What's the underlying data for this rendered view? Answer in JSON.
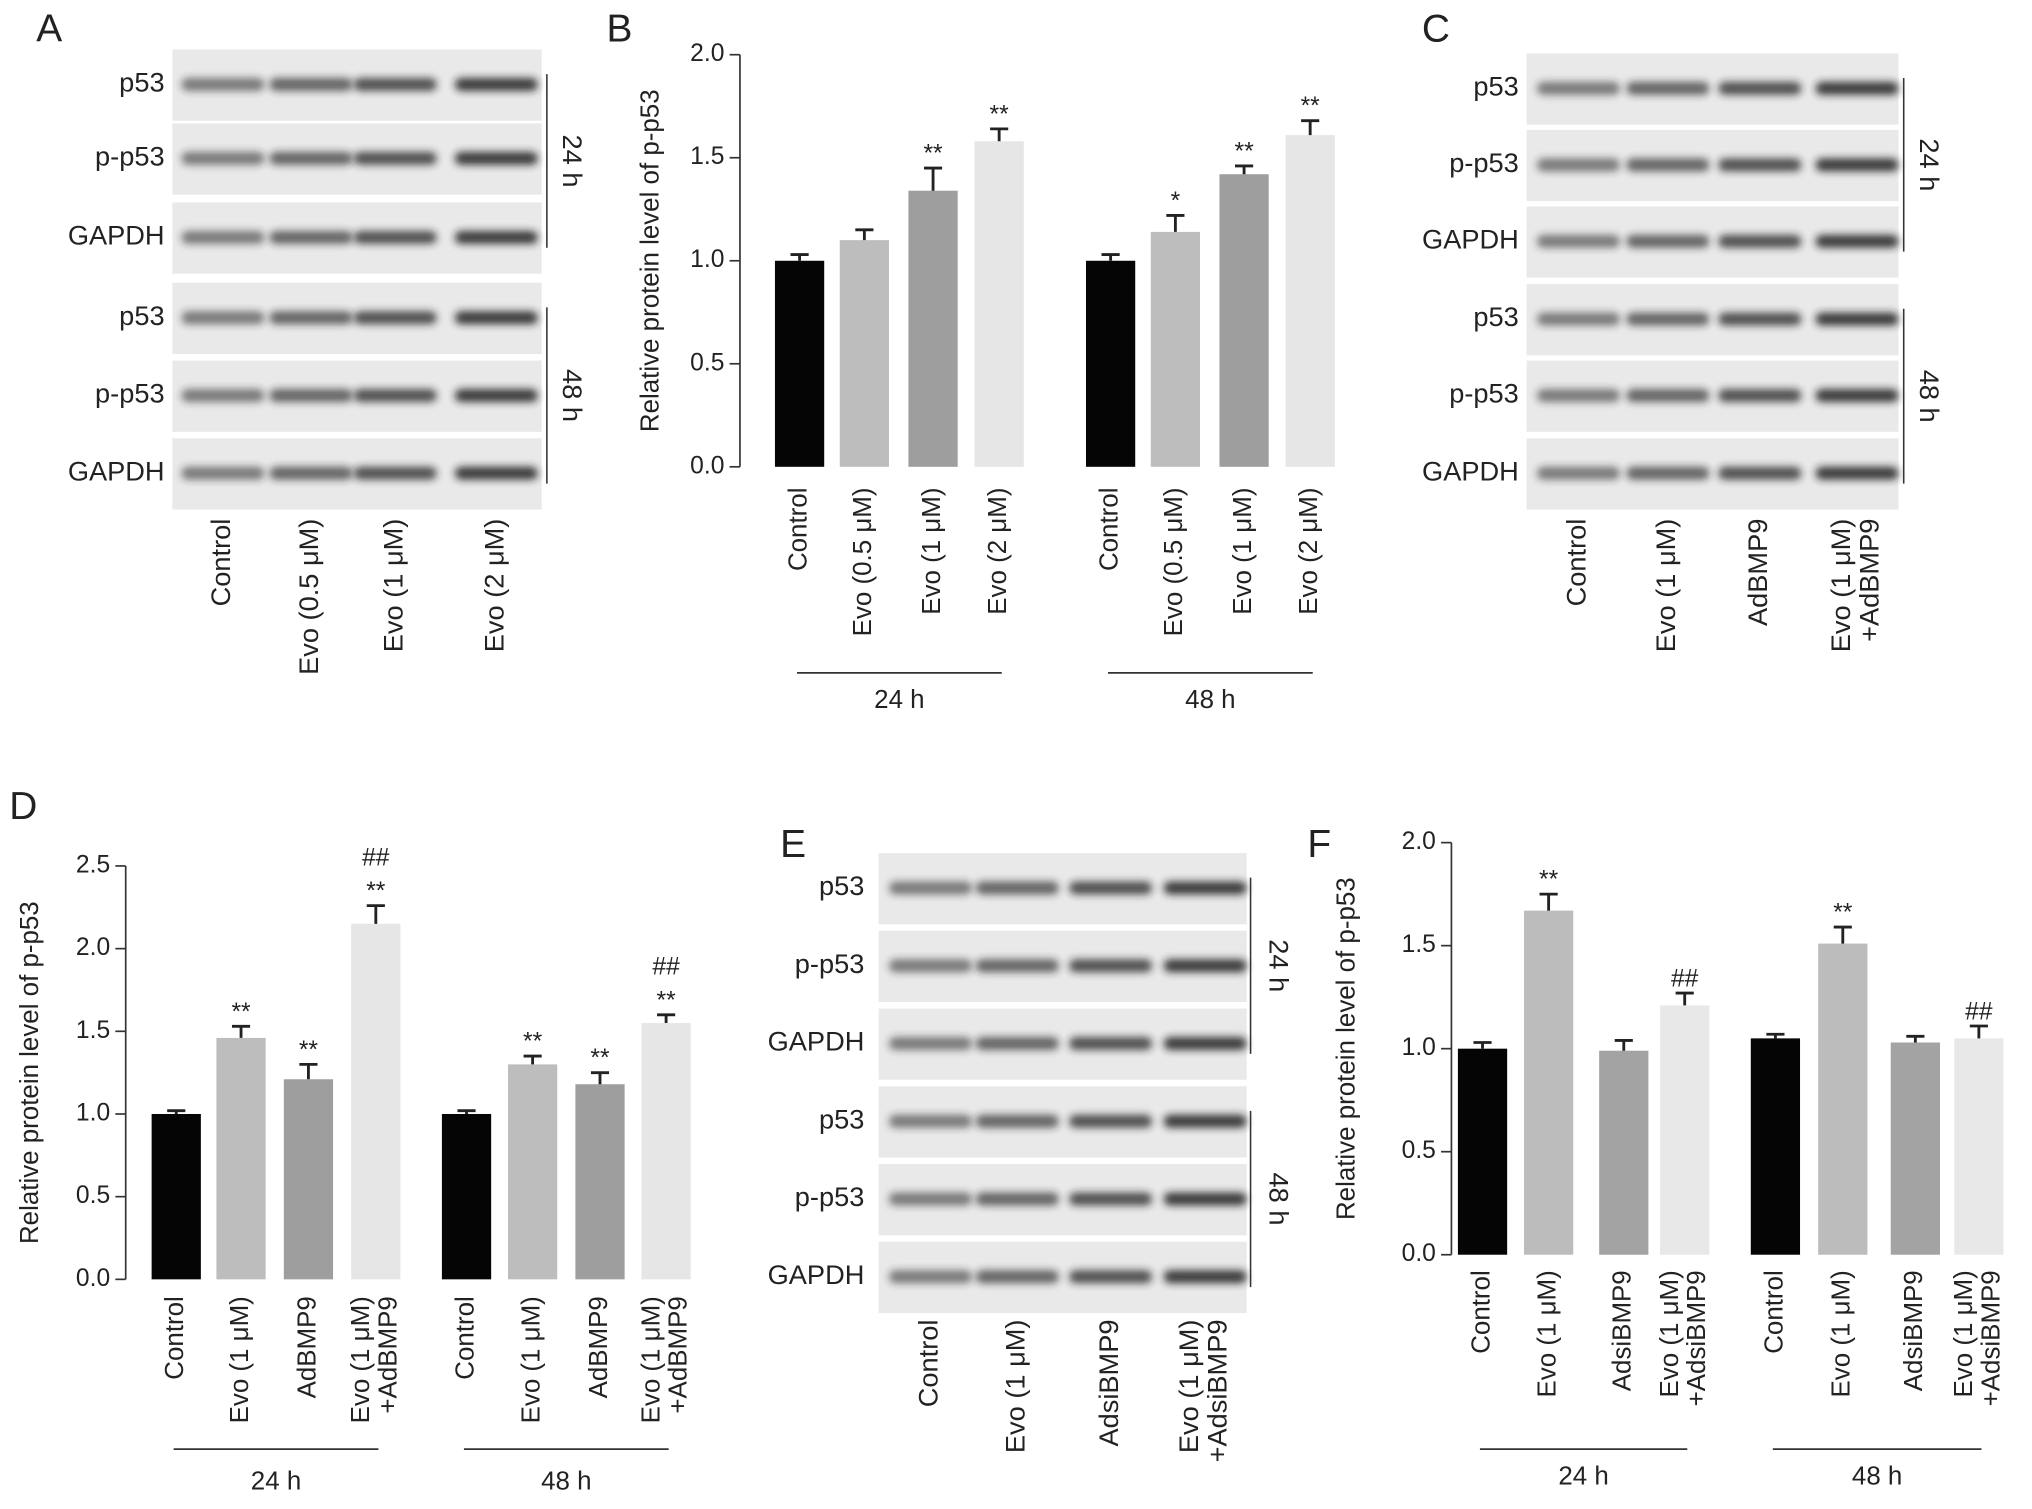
{
  "panels": {
    "labels": [
      "A",
      "B",
      "C",
      "D",
      "E",
      "F"
    ]
  },
  "blots": [
    {
      "rows": [
        "p53",
        "p-p53",
        "GAPDH",
        "p53",
        "p-p53",
        "GAPDH"
      ],
      "groups": [
        "24 h",
        "48 h"
      ],
      "lanes": [
        [
          "Control"
        ],
        [
          "Evo (0.5 μM)"
        ],
        [
          "Evo (1 μM)"
        ],
        [
          "Evo (2 μM)"
        ]
      ]
    },
    {
      "rows": [
        "p53",
        "p-p53",
        "GAPDH",
        "p53",
        "p-p53",
        "GAPDH"
      ],
      "groups": [
        "24 h",
        "48 h"
      ],
      "lanes": [
        [
          "Control"
        ],
        [
          "Evo (1 μM)"
        ],
        [
          "AdBMP9"
        ],
        [
          "Evo (1 μM)",
          "+AdBMP9"
        ]
      ]
    },
    {
      "rows": [
        "p53",
        "p-p53",
        "GAPDH",
        "p53",
        "p-p53",
        "GAPDH"
      ],
      "groups": [
        "24 h",
        "48 h"
      ],
      "lanes": [
        [
          "Control"
        ],
        [
          "Evo (1 μM)"
        ],
        [
          "AdsiBMP9"
        ],
        [
          "Evo (1 μM)",
          "+AdsiBMP9"
        ]
      ]
    }
  ],
  "chart_data": [
    {
      "type": "bar",
      "ylabel": "Relative protein level of p-p53",
      "ylim": [
        0,
        2.0
      ],
      "yticks": [
        {
          "value": 0,
          "label": "0.0"
        },
        0.5,
        {
          "value": 1,
          "label": "1.0"
        },
        1.5,
        {
          "value": 2,
          "label": "2.0"
        }
      ],
      "categories": [
        [
          "Control"
        ],
        [
          "Evo (0.5 μM)"
        ],
        [
          "Evo (1 μM)"
        ],
        [
          "Evo (2 μM)"
        ],
        [
          "Control"
        ],
        [
          "Evo (0.5 μM)"
        ],
        [
          "Evo (1 μM)"
        ],
        [
          "Evo (2 μM)"
        ]
      ],
      "values": [
        1.0,
        1.1,
        1.34,
        1.58,
        1.0,
        1.14,
        1.42,
        1.61
      ],
      "errors": [
        0.03,
        0.05,
        0.11,
        0.06,
        0.03,
        0.08,
        0.04,
        0.07
      ],
      "colors": [
        "#050505",
        "#bdbdbd",
        "#9e9e9e",
        "#e6e6e6",
        "#050505",
        "#bdbdbd",
        "#9e9e9e",
        "#e6e6e6"
      ],
      "annotations": [
        null,
        null,
        [
          "**"
        ],
        [
          "**"
        ],
        null,
        [
          "*"
        ],
        [
          "**"
        ],
        [
          "**"
        ]
      ],
      "groups": [
        "24 h",
        "48 h"
      ]
    },
    {
      "type": "bar",
      "ylabel": "Relative protein level of p-p53",
      "ylim": [
        0,
        2.5
      ],
      "yticks": [
        {
          "value": 0,
          "label": "0.0"
        },
        0.5,
        {
          "value": 1,
          "label": "1.0"
        },
        1.5,
        {
          "value": 2,
          "label": "2.0"
        },
        2.5
      ],
      "categories": [
        [
          "Control"
        ],
        [
          "Evo (1 μM)"
        ],
        [
          "AdBMP9"
        ],
        [
          "Evo (1 μM)",
          "+AdBMP9"
        ],
        [
          "Control"
        ],
        [
          "Evo (1 μM)"
        ],
        [
          "AdBMP9"
        ],
        [
          "Evo (1 μM)",
          "+AdBMP9"
        ]
      ],
      "values": [
        1.0,
        1.46,
        1.21,
        2.15,
        1.0,
        1.3,
        1.18,
        1.55
      ],
      "errors": [
        0.02,
        0.07,
        0.09,
        0.11,
        0.02,
        0.05,
        0.07,
        0.05
      ],
      "colors": [
        "#050505",
        "#bdbdbd",
        "#9e9e9e",
        "#e6e6e6",
        "#050505",
        "#bdbdbd",
        "#9e9e9e",
        "#e6e6e6"
      ],
      "annotations": [
        null,
        [
          "**"
        ],
        [
          "**"
        ],
        [
          "**",
          "##"
        ],
        null,
        [
          "**"
        ],
        [
          "**"
        ],
        [
          "**",
          "##"
        ]
      ],
      "groups": [
        "24 h",
        "48 h"
      ]
    },
    {
      "type": "bar",
      "ylabel": "Relative protein level of p-p53",
      "ylim": [
        0,
        2.0
      ],
      "yticks": [
        {
          "value": 0,
          "label": "0.0"
        },
        0.5,
        {
          "value": 1,
          "label": "1.0"
        },
        1.5,
        {
          "value": 2,
          "label": "2.0"
        }
      ],
      "categories": [
        [
          "Control"
        ],
        [
          "Evo (1 μM)"
        ],
        [
          "AdsiBMP9"
        ],
        [
          "Evo (1 μM)",
          "+AdsiBMP9"
        ],
        [
          "Control"
        ],
        [
          "Evo (1 μM)"
        ],
        [
          "AdsiBMP9"
        ],
        [
          "Evo (1 μM)",
          "+AdsiBMP9"
        ]
      ],
      "values": [
        1.0,
        1.67,
        0.99,
        1.21,
        1.05,
        1.51,
        1.03,
        1.05
      ],
      "errors": [
        0.03,
        0.08,
        0.05,
        0.06,
        0.02,
        0.08,
        0.03,
        0.06
      ],
      "colors": [
        "#050505",
        "#bcbcbc",
        "#a3a3a3",
        "#e8e8e8",
        "#050505",
        "#bcbcbc",
        "#a3a3a3",
        "#e8e8e8"
      ],
      "annotations": [
        null,
        [
          "**"
        ],
        null,
        [
          "##"
        ],
        null,
        [
          "**"
        ],
        null,
        [
          "##"
        ]
      ],
      "groups": [
        "24 h",
        "48 h"
      ]
    }
  ]
}
